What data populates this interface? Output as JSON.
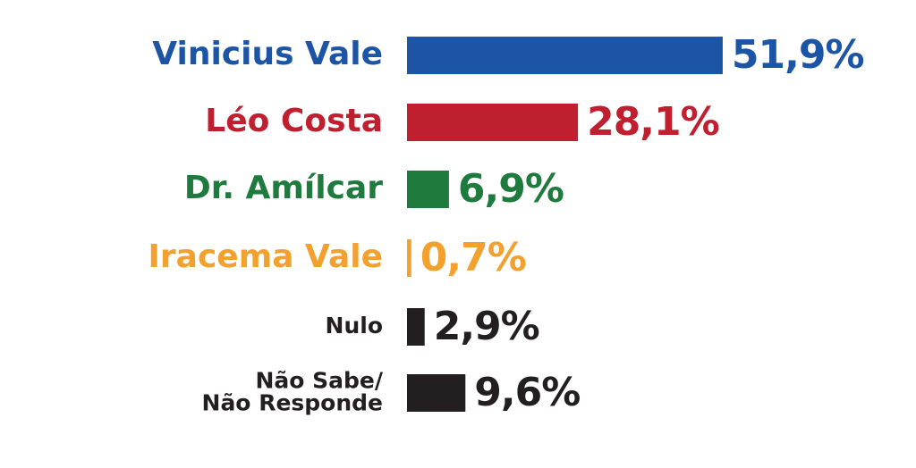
{
  "chart_data": {
    "type": "bar",
    "orientation": "horizontal",
    "categories": [
      "Vinicius Vale",
      "Léo Costa",
      "Dr. Amílcar",
      "Iracema Vale",
      "Nulo",
      "Não Sabe/\nNão Responde"
    ],
    "values": [
      51.9,
      28.1,
      6.9,
      0.7,
      2.9,
      9.6
    ],
    "value_labels": [
      "51,9%",
      "28,1%",
      "6,9%",
      "0,7%",
      "2,9%",
      "9,6%"
    ],
    "colors": [
      "#1d55a6",
      "#c01f2f",
      "#1f7a3d",
      "#f2a02e",
      "#231f20",
      "#231f20"
    ]
  }
}
